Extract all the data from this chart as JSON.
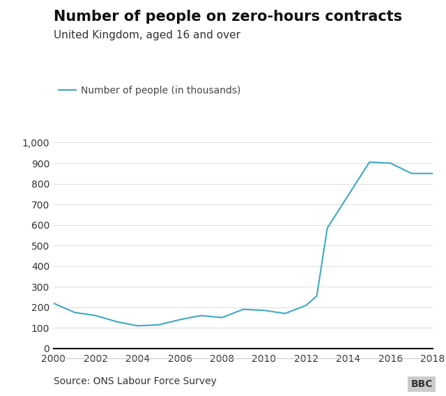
{
  "title": "Number of people on zero-hours contracts",
  "subtitle": "United Kingdom, aged 16 and over",
  "legend_label": "Number of people (in thousands)",
  "source": "Source: ONS Labour Force Survey",
  "bbc_label": "BBC",
  "line_color": "#3ea8c5",
  "background_color": "#ffffff",
  "years": [
    2000,
    2001,
    2002,
    2003,
    2004,
    2005,
    2006,
    2007,
    2008,
    2009,
    2010,
    2011,
    2012,
    2012.5,
    2013,
    2014,
    2015,
    2016,
    2017,
    2018
  ],
  "values": [
    220,
    175,
    160,
    130,
    110,
    115,
    140,
    160,
    150,
    190,
    185,
    170,
    210,
    255,
    585,
    745,
    905,
    900,
    850,
    850
  ],
  "xlim": [
    2000,
    2018
  ],
  "ylim": [
    0,
    1000
  ],
  "yticks": [
    0,
    100,
    200,
    300,
    400,
    500,
    600,
    700,
    800,
    900,
    1000
  ],
  "xticks": [
    2000,
    2002,
    2004,
    2006,
    2008,
    2010,
    2012,
    2014,
    2016,
    2018
  ],
  "title_fontsize": 15,
  "subtitle_fontsize": 11,
  "legend_fontsize": 10,
  "tick_fontsize": 10,
  "source_fontsize": 10
}
